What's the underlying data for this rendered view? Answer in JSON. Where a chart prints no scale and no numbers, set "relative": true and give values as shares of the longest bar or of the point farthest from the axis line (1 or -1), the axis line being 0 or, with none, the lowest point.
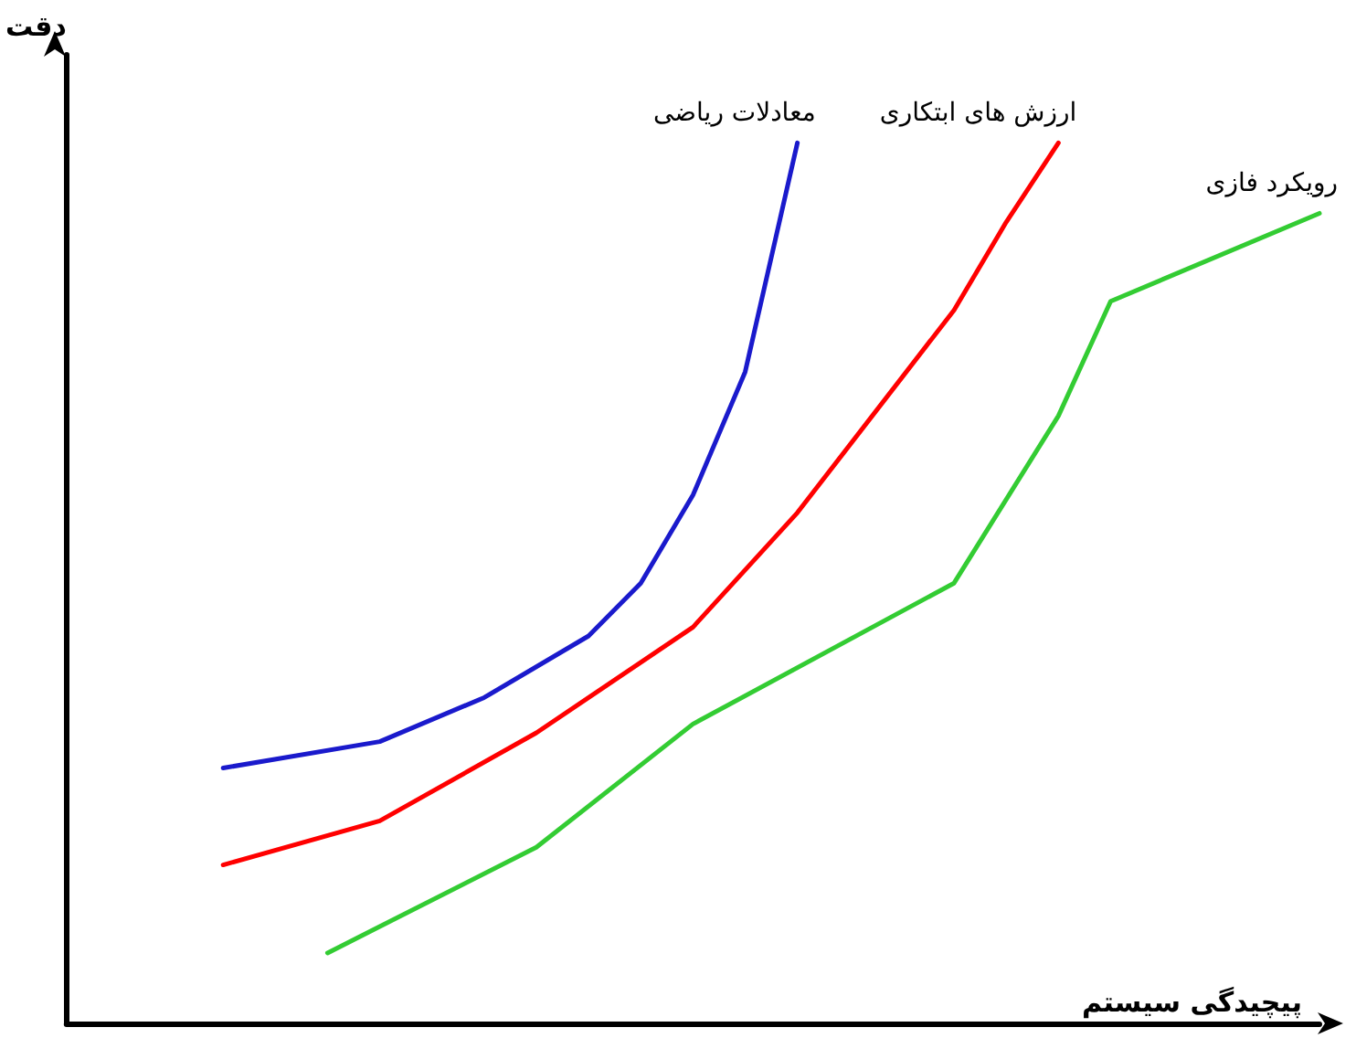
{
  "chart_data": {
    "type": "line",
    "relative": true,
    "xlabel": "پیچیدگی سیستم",
    "ylabel": "دقت",
    "legend": false,
    "grid": false,
    "marker": "none",
    "line_style": "solid",
    "categories": [
      null,
      null,
      null,
      null,
      null,
      null,
      null,
      null,
      null,
      null,
      null,
      null,
      null,
      null,
      null,
      null,
      null,
      null,
      null,
      null,
      null,
      null,
      null,
      null,
      null
    ],
    "series": [
      {
        "name": "معادلات ریاضی",
        "color": "#1a1acc",
        "values": [
          null,
          null,
          null,
          0.29,
          null,
          null,
          0.32,
          null,
          0.37,
          null,
          0.44,
          0.5,
          0.6,
          0.74,
          1.0,
          null,
          null,
          null,
          null,
          null,
          null,
          null,
          null,
          null,
          null
        ]
      },
      {
        "name": "ارزش های ابتکاری",
        "color": "#ff0000",
        "values": [
          null,
          null,
          null,
          0.18,
          null,
          null,
          0.23,
          null,
          null,
          0.33,
          null,
          null,
          0.45,
          null,
          0.58,
          null,
          null,
          0.81,
          0.91,
          1.0,
          null,
          null,
          null,
          null,
          null
        ]
      },
      {
        "name": "رویکرد فازی",
        "color": "#33cc33",
        "values": [
          null,
          null,
          null,
          null,
          null,
          0.08,
          null,
          null,
          null,
          0.2,
          null,
          null,
          0.34,
          null,
          null,
          null,
          null,
          0.5,
          null,
          0.69,
          0.82,
          null,
          null,
          null,
          0.92
        ]
      }
    ]
  }
}
